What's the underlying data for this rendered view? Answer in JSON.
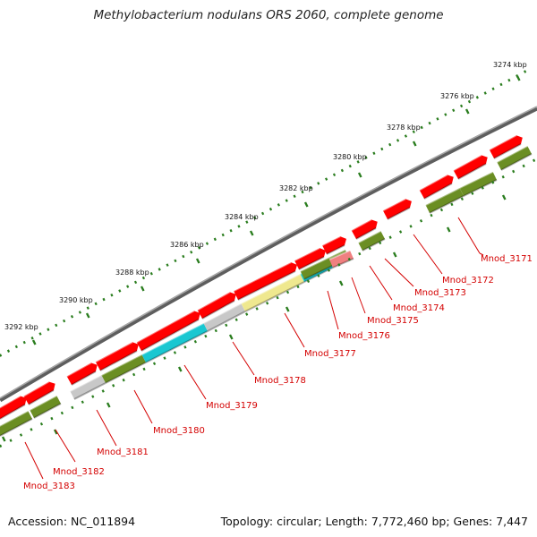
{
  "header": {
    "title": "Methylobacterium nodulans ORS 2060, complete genome"
  },
  "footer": {
    "accession": "Accession: NC_011894",
    "topology": "Topology: circular; Length: 7,772,460 bp; Genes: 7,447"
  },
  "colors": {
    "forward_strand": "#ff0000",
    "reverse_strand": "#6b8e23",
    "backbone": "#808080",
    "ruler": "#2a7d1e",
    "label": "#d40000",
    "gene_cyan": "#19c7d1",
    "gene_khaki": "#efe88f",
    "gene_gray": "#c8c8c8",
    "gene_pink": "#f08080"
  },
  "ruler": {
    "unit": "kbp",
    "ticks": [
      {
        "label": "3274 kbp",
        "kbp": 3274
      },
      {
        "label": "3276 kbp",
        "kbp": 3276
      },
      {
        "label": "3278 kbp",
        "kbp": 3278
      },
      {
        "label": "3280 kbp",
        "kbp": 3280
      },
      {
        "label": "3282 kbp",
        "kbp": 3282
      },
      {
        "label": "3284 kbp",
        "kbp": 3284
      },
      {
        "label": "3286 kbp",
        "kbp": 3286
      },
      {
        "label": "3288 kbp",
        "kbp": 3288
      },
      {
        "label": "3290 kbp",
        "kbp": 3290
      },
      {
        "label": "3292 kbp",
        "kbp": 3292
      }
    ]
  },
  "gene_labels": [
    "Mnod_3171",
    "Mnod_3172",
    "Mnod_3173",
    "Mnod_3174",
    "Mnod_3175",
    "Mnod_3176",
    "Mnod_3177",
    "Mnod_3178",
    "Mnod_3179",
    "Mnod_3180",
    "Mnod_3181",
    "Mnod_3182",
    "Mnod_3183"
  ]
}
